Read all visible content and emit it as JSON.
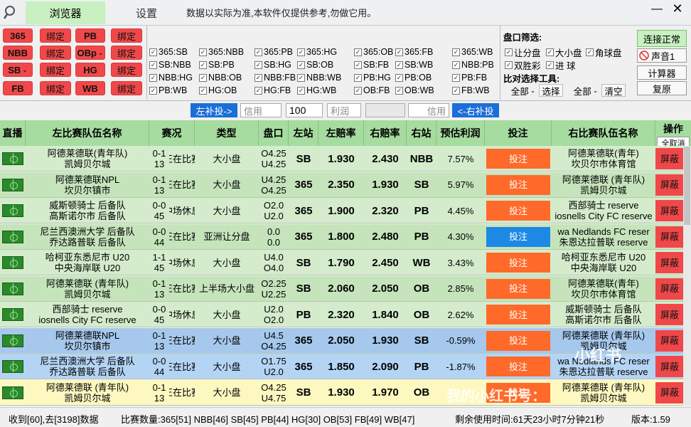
{
  "tabs": {
    "browser": "浏览器",
    "settings": "设置"
  },
  "disclaimer": "数据以实际为准,本软件仅提供参考,勿做它用。",
  "window": {
    "minimize": "—",
    "close": "✕"
  },
  "sites": [
    {
      "site": "365",
      "bind": "绑定"
    },
    {
      "site": "NBB",
      "bind": "绑定"
    },
    {
      "site": "SB",
      "bind": "绑定"
    },
    {
      "site": "FB",
      "bind": "绑定"
    },
    {
      "site": "PB",
      "bind": "绑定"
    },
    {
      "site": "OBp",
      "bind": "绑定"
    },
    {
      "site": "HG",
      "bind": "绑定"
    },
    {
      "site": "WB",
      "bind": "绑定"
    }
  ],
  "pairs": [
    "365:SB",
    "365:NBB",
    "365:PB",
    "365:HG",
    "365:OB",
    "365:FB",
    "365:WB",
    "SB:NBB",
    "SB:PB",
    "SB:HG",
    "SB:OB",
    "SB:FB",
    "SB:WB",
    "NBB:PB",
    "NBB:HG",
    "NBB:OB",
    "NBB:FB",
    "NBB:WB",
    "PB:HG",
    "PB:OB",
    "PB:FB",
    "PB:WB",
    "HG:OB",
    "HG:FB",
    "HG:WB",
    "OB:FB",
    "OB:WB",
    "FB:WB"
  ],
  "filter": {
    "title": "盘口筛选:",
    "handicap": "让分盘",
    "overunder": "大小盘",
    "corner": "角球盘",
    "double": "双胜彩",
    "goal": "进 球",
    "tool_title": "比对选择工具:",
    "all1": "全部",
    "select": "选择",
    "all2": "全部",
    "clear": "清空"
  },
  "right_buttons": {
    "status": "连接正常",
    "sound": "声音1",
    "calculator": "计算器",
    "restore": "复原"
  },
  "supplement": {
    "left": "左补投->",
    "use1": "信用",
    "amount": "100",
    "profit": "利润",
    "use2": "信用",
    "right": "<-右补投"
  },
  "headers": {
    "live": "直播",
    "left_team": "左比赛队伍名称",
    "score": "赛况",
    "type": "类型",
    "line": "盘口",
    "left_site": "左站",
    "left_odds": "左赔率",
    "right_odds": "右赔率",
    "right_site": "右站",
    "profit": "预估利润",
    "bet": "投注",
    "right_team": "右比赛队伍名称",
    "op": "操作",
    "cancel_all": "全取消"
  },
  "colors": {
    "green_row": "#d4eccc",
    "green_row_alt": "#c6e4bc",
    "blue_row": "#b4d4f4",
    "blue_row_alt": "#a6c8ec",
    "yellow_row": "#fdf8c0",
    "bet_orange": "#ff6a2a",
    "bet_blue": "#1e88e5",
    "hide_red": "#f0484a"
  },
  "rows": [
    {
      "lt1": "阿德莱德联(青年队)",
      "lt2": "凯姆贝尔城",
      "s1": "0-1",
      "s2": "13",
      "status": "正在比赛",
      "type": "大小盘",
      "l1": "O4.25",
      "l2": "U4.25",
      "ls": "SB",
      "lo": "1.930",
      "ro": "2.430",
      "rs": "NBB",
      "profit": "7.57%",
      "bet": "投注",
      "rt1": "阿德莱德联(青年)",
      "rt2": "坎贝尔市体育馆",
      "hide": "屏蔽",
      "bg": "green",
      "betc": "orange"
    },
    {
      "lt1": "阿德莱德联NPL",
      "lt2": "坎贝尔镇市",
      "s1": "0-1",
      "s2": "13",
      "status": "正在比赛",
      "type": "大小盘",
      "l1": "U4.25",
      "l2": "O4.25",
      "ls": "365",
      "lo": "2.350",
      "ro": "1.930",
      "rs": "SB",
      "profit": "5.97%",
      "bet": "投注",
      "rt1": "阿德莱德联 (青年队)",
      "rt2": "凯姆贝尔城",
      "hide": "屏蔽",
      "bg": "green",
      "betc": "orange"
    },
    {
      "lt1": "威斯顿骑士 后备队",
      "lt2": "高斯诺尔市 后备队",
      "s1": "0-0",
      "s2": "45",
      "status": "中场休息",
      "type": "大小盘",
      "l1": "O2.0",
      "l2": "U2.0",
      "ls": "365",
      "lo": "1.900",
      "ro": "2.320",
      "rs": "PB",
      "profit": "4.45%",
      "bet": "投注",
      "rt1": "西部骑士 reserve",
      "rt2": "iosnells City FC reserve",
      "hide": "屏蔽",
      "bg": "green",
      "betc": "orange"
    },
    {
      "lt1": "尼兰西澳洲大学 后备队",
      "lt2": "乔达路普联 后备队",
      "s1": "0-0",
      "s2": "44",
      "status": "正在比赛",
      "type": "亚洲让分盘",
      "l1": "0.0",
      "l2": "0.0",
      "ls": "365",
      "lo": "1.800",
      "ro": "2.480",
      "rs": "PB",
      "profit": "4.30%",
      "bet": "投注",
      "rt1": "wa Nedlands FC reser",
      "rt2": "朱恩达拉普联 reserve",
      "hide": "屏蔽",
      "bg": "green",
      "betc": "blue"
    },
    {
      "lt1": "哈柯亚东悉尼市 U20",
      "lt2": "中央海岸联 U20",
      "s1": "1-1",
      "s2": "45",
      "status": "中场休息",
      "type": "大小盘",
      "l1": "U4.0",
      "l2": "O4.0",
      "ls": "SB",
      "lo": "1.790",
      "ro": "2.450",
      "rs": "WB",
      "profit": "3.43%",
      "bet": "投注",
      "rt1": "哈柯亚东悉尼市 U20",
      "rt2": "中央海岸联 U20",
      "hide": "屏蔽",
      "bg": "green",
      "betc": "orange"
    },
    {
      "lt1": "阿德莱德联 (青年队)",
      "lt2": "凯姆贝尔城",
      "s1": "0-1",
      "s2": "13",
      "status": "正在比赛",
      "type": "上半场大小盘",
      "l1": "O2.25",
      "l2": "U2.25",
      "ls": "SB",
      "lo": "2.060",
      "ro": "2.050",
      "rs": "OB",
      "profit": "2.85%",
      "bet": "投注",
      "rt1": "阿德莱德联(青年)",
      "rt2": "坎贝尔市体育馆",
      "hide": "屏蔽",
      "bg": "green",
      "betc": "orange"
    },
    {
      "lt1": "西部骑士 reserve",
      "lt2": "iosnells City FC reserve",
      "s1": "0-0",
      "s2": "45",
      "status": "中场休息",
      "type": "大小盘",
      "l1": "U2.0",
      "l2": "O2.0",
      "ls": "PB",
      "lo": "2.320",
      "ro": "1.840",
      "rs": "OB",
      "profit": "2.62%",
      "bet": "投注",
      "rt1": "威斯顿骑士 后备队",
      "rt2": "高斯诺尔市 后备队",
      "hide": "屏蔽",
      "bg": "green",
      "betc": "orange"
    },
    {
      "lt1": "阿德莱德联NPL",
      "lt2": "坎贝尔镇市",
      "s1": "0-1",
      "s2": "13",
      "status": "正在比赛",
      "type": "大小盘",
      "l1": "U4.5",
      "l2": "O4.25",
      "ls": "365",
      "lo": "2.050",
      "ro": "1.930",
      "rs": "SB",
      "profit": "-0.59%",
      "bet": "投注",
      "rt1": "阿德莱德联 (青年队)",
      "rt2": "凯姆贝尔城",
      "hide": "屏蔽",
      "bg": "blue",
      "betc": "orange"
    },
    {
      "lt1": "尼兰西澳洲大学 后备队",
      "lt2": "乔达路普联 后备队",
      "s1": "0-0",
      "s2": "44",
      "status": "正在比赛",
      "type": "大小盘",
      "l1": "O1.75",
      "l2": "U2.0",
      "ls": "365",
      "lo": "1.850",
      "ro": "2.090",
      "rs": "PB",
      "profit": "-1.87%",
      "bet": "投注",
      "rt1": "wa Nedlands FC reser",
      "rt2": "朱恩达拉普联 reserve",
      "hide": "屏蔽",
      "bg": "blue",
      "betc": "orange"
    },
    {
      "lt1": "阿德莱德联 (青年队)",
      "lt2": "凯姆贝尔城",
      "s1": "0-1",
      "s2": "13",
      "status": "正在比赛",
      "type": "大小盘",
      "l1": "O4.25",
      "l2": "U4.75",
      "ls": "SB",
      "lo": "1.930",
      "ro": "1.970",
      "rs": "OB",
      "profit": "",
      "bet": "投注",
      "rt1": "阿德莱德联 (青年队)",
      "rt2": "凯姆贝尔城",
      "hide": "屏蔽",
      "bg": "yellow",
      "betc": "orange"
    }
  ],
  "status_bar": {
    "received": "收到[60],去[3198]数据",
    "counts": "比赛数量:365[51] NBB[46] SB[45] PB[44] HG[30] OB[53] FB[49] WB[47]",
    "remaining": "剩余使用时间:61天23小时7分钟21秒",
    "version": "版本:1.59"
  },
  "watermark": {
    "badge": "小红书",
    "text": "我的小红书号："
  }
}
